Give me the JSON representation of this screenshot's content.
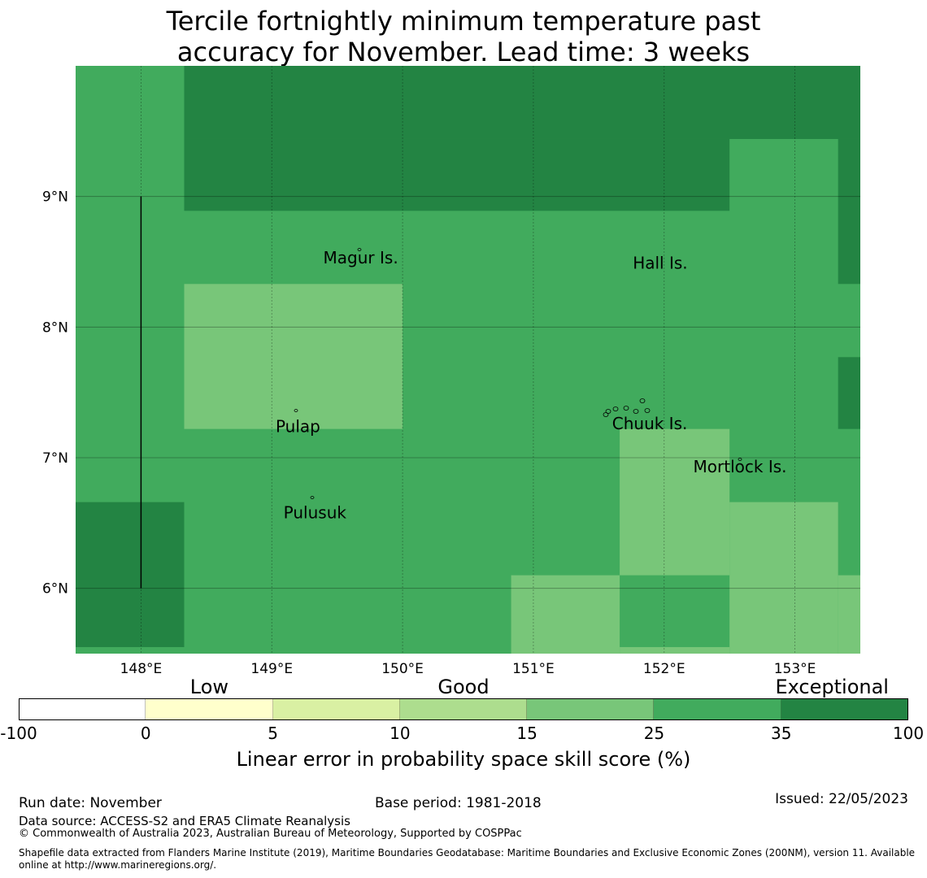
{
  "title": [
    "Tercile fortnightly minimum temperature past",
    "accuracy for November. Lead time: 3 weeks"
  ],
  "colors": {
    "mid": "#41ab5d",
    "dark": "#238443",
    "light": "#78c679"
  },
  "chart_data": {
    "type": "heatmap",
    "extent": {
      "lon": [
        147.5,
        153.5
      ],
      "lat": [
        5.5,
        10.0
      ]
    },
    "background_category": "mid",
    "cells": [
      {
        "lon": [
          148.33,
          153.5
        ],
        "lat": [
          9.44,
          10.0
        ],
        "cat": "dark"
      },
      {
        "lon": [
          148.33,
          152.5
        ],
        "lat": [
          8.89,
          9.44
        ],
        "cat": "dark"
      },
      {
        "lon": [
          153.33,
          153.5
        ],
        "lat": [
          8.33,
          9.44
        ],
        "cat": "dark"
      },
      {
        "lon": [
          153.33,
          153.5
        ],
        "lat": [
          7.22,
          7.77
        ],
        "cat": "dark"
      },
      {
        "lon": [
          147.5,
          148.33
        ],
        "lat": [
          5.55,
          6.66
        ],
        "cat": "dark"
      },
      {
        "lon": [
          148.33,
          150.0
        ],
        "lat": [
          7.22,
          8.33
        ],
        "cat": "light"
      },
      {
        "lon": [
          151.66,
          152.5
        ],
        "lat": [
          6.1,
          7.22
        ],
        "cat": "light"
      },
      {
        "lon": [
          152.5,
          153.33
        ],
        "lat": [
          5.5,
          6.66
        ],
        "cat": "light"
      },
      {
        "lon": [
          153.33,
          153.5
        ],
        "lat": [
          5.5,
          6.1
        ],
        "cat": "light"
      },
      {
        "lon": [
          150.83,
          151.66
        ],
        "lat": [
          5.5,
          6.1
        ],
        "cat": "light"
      },
      {
        "lon": [
          151.66,
          152.5
        ],
        "lat": [
          5.5,
          5.55
        ],
        "cat": "light"
      }
    ],
    "x_ticks": [
      {
        "v": 148,
        "label": "148°E"
      },
      {
        "v": 149,
        "label": "149°E"
      },
      {
        "v": 150,
        "label": "150°E"
      },
      {
        "v": 151,
        "label": "151°E"
      },
      {
        "v": 152,
        "label": "152°E"
      },
      {
        "v": 153,
        "label": "153°E"
      }
    ],
    "y_ticks": [
      {
        "v": 9,
        "label": "9°N"
      },
      {
        "v": 8,
        "label": "8°N"
      },
      {
        "v": 7,
        "label": "7°N"
      },
      {
        "v": 6,
        "label": "6°N"
      }
    ],
    "boundary_line": {
      "lon": 148,
      "lat": [
        6,
        9
      ]
    },
    "places": [
      {
        "name": "Magur Is.",
        "lon": 149.68,
        "lat": 8.53
      },
      {
        "name": "Hall Is.",
        "lon": 151.97,
        "lat": 8.49
      },
      {
        "name": "Pulap",
        "lon": 149.2,
        "lat": 7.24
      },
      {
        "name": "Chuuk Is.",
        "lon": 151.89,
        "lat": 7.26
      },
      {
        "name": "Mortlock Is.",
        "lon": 152.58,
        "lat": 6.93
      },
      {
        "name": "Pulusuk",
        "lon": 149.33,
        "lat": 6.58
      }
    ]
  },
  "colorbar": {
    "segments": [
      "#ffffff",
      "#ffffcc",
      "#d9f0a3",
      "#addd8e",
      "#78c679",
      "#41ab5d",
      "#238443"
    ],
    "ticks": [
      "-100",
      "0",
      "5",
      "10",
      "15",
      "25",
      "35",
      "100"
    ],
    "categories": [
      {
        "label": "Low",
        "pos": 1.5
      },
      {
        "label": "Good",
        "pos": 3.5
      },
      {
        "label": "Exceptional",
        "pos": 6.4
      }
    ],
    "label": "Linear error in probability space skill score (%)"
  },
  "footer": {
    "run_date": "Run date: November",
    "base_period": "Base period: 1981-2018",
    "issued": "Issued: 22/05/2023",
    "data_source": "Data source: ACCESS-S2 and ERA5 Climate Reanalysis",
    "copyright": "© Commonwealth of Australia 2023, Australian Bureau of Meteorology, Supported by COSPPac",
    "shapefile": "Shapefile data extracted from Flanders Marine Institute (2019), Maritime Boundaries Geodatabase: Maritime Boundaries and Exclusive Economic Zones (200NM), version 11. Available online at http://www.marineregions.org/."
  }
}
